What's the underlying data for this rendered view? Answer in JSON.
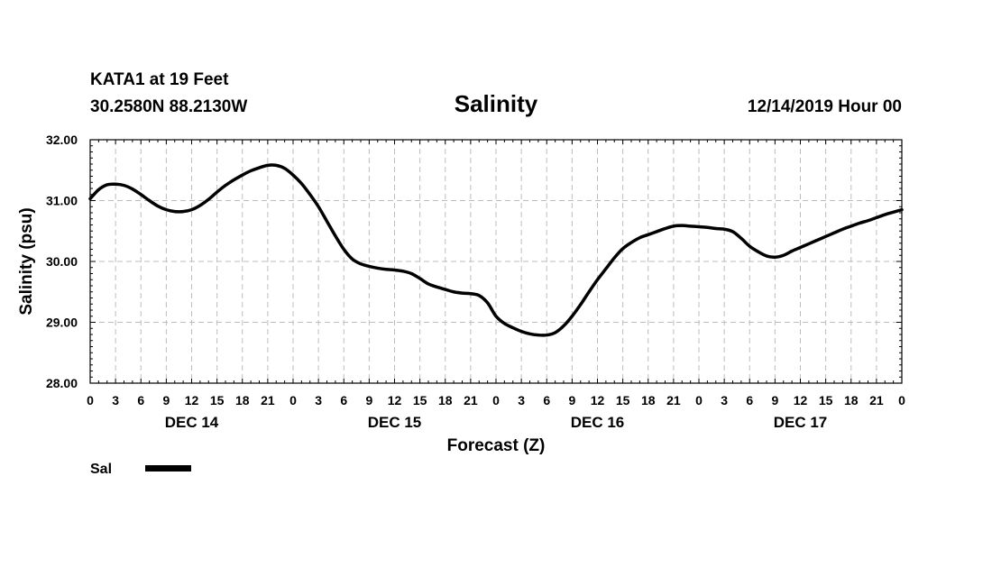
{
  "header": {
    "station": "KATA1 at 19 Feet",
    "location": "30.2580N 88.2130W",
    "run": "12/14/2019 Hour 00"
  },
  "chart_data": {
    "type": "line",
    "title": "Salinity",
    "xlabel": "Forecast (Z)",
    "ylabel": "Salinity (psu)",
    "ylim": [
      28.0,
      32.0
    ],
    "xlim_hours": [
      0,
      96
    ],
    "y_ticks": [
      "28.00",
      "29.00",
      "30.00",
      "31.00",
      "32.00"
    ],
    "x_tick_labels": [
      "0",
      "3",
      "6",
      "9",
      "12",
      "15",
      "18",
      "21",
      "0",
      "3",
      "6",
      "9",
      "12",
      "15",
      "18",
      "21",
      "0",
      "3",
      "6",
      "9",
      "12",
      "15",
      "18",
      "21",
      "0",
      "3",
      "6",
      "9",
      "12",
      "15",
      "18",
      "21",
      "0"
    ],
    "day_labels": [
      {
        "label": "DEC 14",
        "hour": 12
      },
      {
        "label": "DEC 15",
        "hour": 36
      },
      {
        "label": "DEC 16",
        "hour": 60
      },
      {
        "label": "DEC 17",
        "hour": 84
      }
    ],
    "grid": true,
    "legend": {
      "placement": "bottom-left",
      "entries": [
        "Sal"
      ]
    },
    "series": [
      {
        "name": "Sal",
        "color": "#000000",
        "x": [
          0,
          1,
          2,
          3,
          4,
          5,
          6,
          7,
          8,
          9,
          10,
          11,
          12,
          13,
          14,
          15,
          16,
          17,
          18,
          19,
          20,
          21,
          22,
          23,
          24,
          25,
          26,
          27,
          28,
          29,
          30,
          31,
          32,
          33,
          34,
          35,
          36,
          37,
          38,
          39,
          40,
          41,
          42,
          43,
          44,
          45,
          46,
          47,
          48,
          49,
          50,
          51,
          52,
          53,
          54,
          55,
          56,
          57,
          58,
          59,
          60,
          61,
          62,
          63,
          64,
          65,
          66,
          67,
          68,
          69,
          70,
          71,
          72,
          73,
          74,
          75,
          76,
          77,
          78,
          79,
          80,
          81,
          82,
          83,
          84,
          85,
          86,
          87,
          88,
          89,
          90,
          91,
          92,
          93,
          94,
          95,
          96
        ],
        "values": [
          31.03,
          31.18,
          31.26,
          31.27,
          31.25,
          31.19,
          31.1,
          31.0,
          30.91,
          30.85,
          30.82,
          30.82,
          30.85,
          30.92,
          31.02,
          31.14,
          31.25,
          31.34,
          31.42,
          31.49,
          31.54,
          31.58,
          31.58,
          31.53,
          31.42,
          31.28,
          31.1,
          30.9,
          30.66,
          30.42,
          30.2,
          30.04,
          29.96,
          29.92,
          29.89,
          29.87,
          29.86,
          29.84,
          29.8,
          29.72,
          29.63,
          29.58,
          29.54,
          29.5,
          29.48,
          29.47,
          29.44,
          29.32,
          29.1,
          28.98,
          28.91,
          28.85,
          28.81,
          28.79,
          28.79,
          28.83,
          28.94,
          29.1,
          29.29,
          29.5,
          29.7,
          29.88,
          30.06,
          30.21,
          30.31,
          30.39,
          30.44,
          30.49,
          30.54,
          30.58,
          30.59,
          30.58,
          30.57,
          30.56,
          30.54,
          30.53,
          30.49,
          30.38,
          30.25,
          30.16,
          30.09,
          30.07,
          30.1,
          30.17,
          30.23,
          30.29,
          30.35,
          30.41,
          30.47,
          30.53,
          30.58,
          30.63,
          30.67,
          30.72,
          30.77,
          30.81,
          30.85
        ]
      }
    ]
  }
}
